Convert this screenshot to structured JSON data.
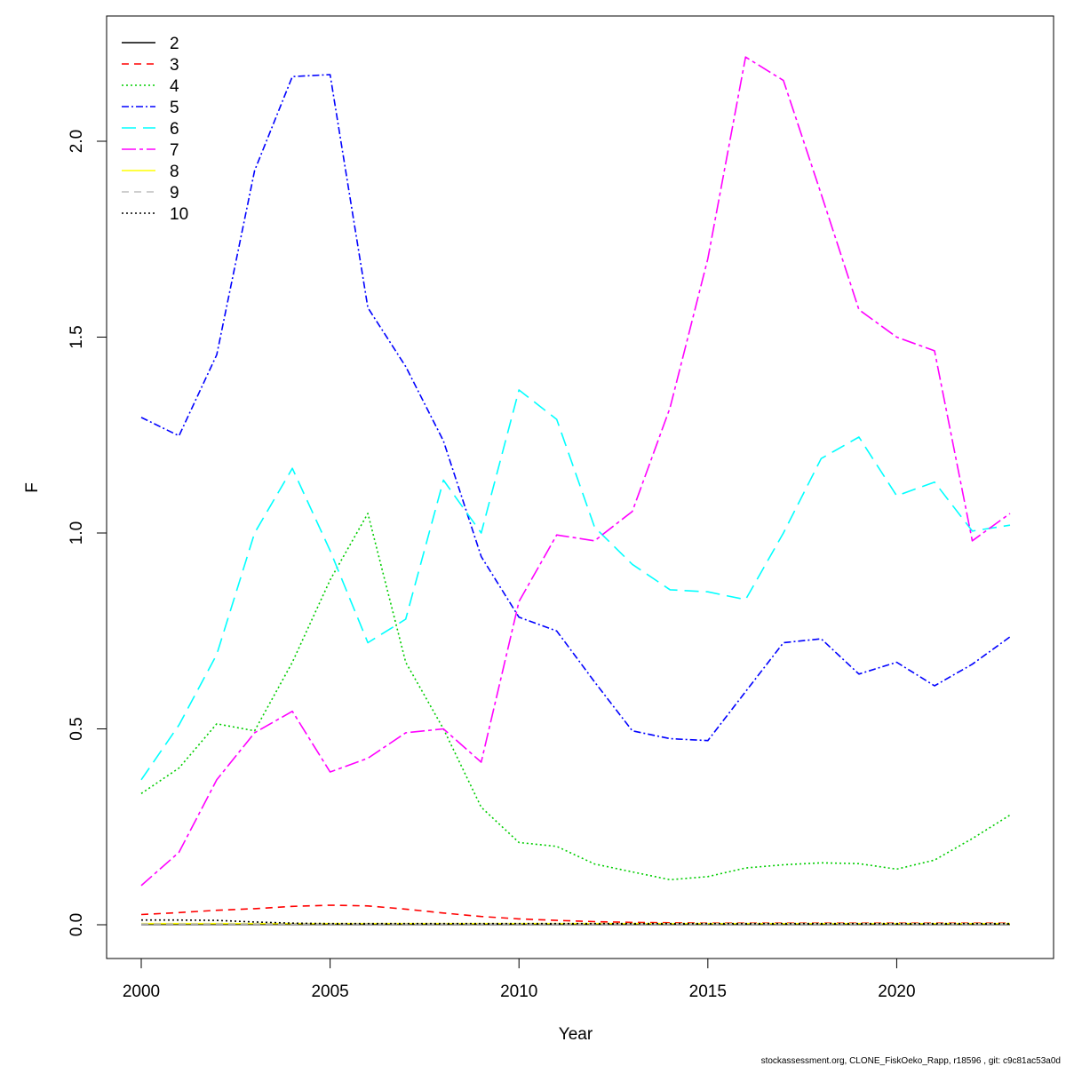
{
  "chart_data": {
    "type": "line",
    "title": "",
    "xlabel": "Year",
    "ylabel": "F",
    "xlim": [
      2000,
      2023
    ],
    "ylim": [
      0,
      2.2
    ],
    "xticks": [
      2000,
      2005,
      2010,
      2015,
      2020
    ],
    "yticks": [
      "0.0",
      "0.5",
      "1.0",
      "1.5",
      "2.0"
    ],
    "legend_position": "top-left",
    "grid": false,
    "x": [
      2000,
      2001,
      2002,
      2003,
      2004,
      2005,
      2006,
      2007,
      2008,
      2009,
      2010,
      2011,
      2012,
      2013,
      2014,
      2015,
      2016,
      2017,
      2018,
      2019,
      2020,
      2021,
      2022,
      2023
    ],
    "series": [
      {
        "name": "2",
        "color": "#000000",
        "dash": "",
        "values": [
          0.001,
          0.001,
          0.001,
          0.001,
          0.001,
          0.001,
          0.001,
          0.001,
          0.001,
          0.001,
          0.001,
          0.001,
          0.001,
          0.001,
          0.001,
          0.001,
          0.001,
          0.001,
          0.001,
          0.001,
          0.001,
          0.001,
          0.001,
          0.001
        ]
      },
      {
        "name": "3",
        "color": "#ff0000",
        "dash": "8,6",
        "values": [
          0.026,
          0.031,
          0.037,
          0.041,
          0.047,
          0.05,
          0.048,
          0.04,
          0.03,
          0.021,
          0.015,
          0.011,
          0.008,
          0.006,
          0.005,
          0.004,
          0.004,
          0.004,
          0.004,
          0.004,
          0.004,
          0.004,
          0.004,
          0.004
        ]
      },
      {
        "name": "4",
        "color": "#00cd00",
        "dash": "2,3",
        "values": [
          0.335,
          0.4,
          0.513,
          0.495,
          0.67,
          0.88,
          1.05,
          0.67,
          0.5,
          0.3,
          0.21,
          0.2,
          0.155,
          0.135,
          0.115,
          0.123,
          0.145,
          0.153,
          0.158,
          0.156,
          0.142,
          0.165,
          0.22,
          0.28
        ]
      },
      {
        "name": "5",
        "color": "#0000ff",
        "dash": "8,3,2,3",
        "values": [
          1.295,
          1.248,
          1.455,
          1.925,
          2.165,
          2.17,
          1.575,
          1.425,
          1.235,
          0.94,
          0.785,
          0.75,
          0.62,
          0.495,
          0.475,
          0.47,
          0.595,
          0.72,
          0.73,
          0.64,
          0.67,
          0.61,
          0.665,
          0.735
        ]
      },
      {
        "name": "6",
        "color": "#00ffff",
        "dash": "16,8",
        "values": [
          0.37,
          0.51,
          0.69,
          1.0,
          1.165,
          0.955,
          0.72,
          0.78,
          1.135,
          1.0,
          1.365,
          1.29,
          1.015,
          0.92,
          0.855,
          0.85,
          0.83,
          1.0,
          1.19,
          1.245,
          1.095,
          1.13,
          1.005,
          1.02
        ]
      },
      {
        "name": "7",
        "color": "#ff00ff",
        "dash": "16,4,4,4",
        "values": [
          0.1,
          0.185,
          0.37,
          0.49,
          0.545,
          0.39,
          0.425,
          0.49,
          0.5,
          0.415,
          0.825,
          0.995,
          0.98,
          1.055,
          1.32,
          1.7,
          2.215,
          2.155,
          1.865,
          1.57,
          1.5,
          1.465,
          0.98,
          1.05
        ]
      },
      {
        "name": "8",
        "color": "#ffff00",
        "dash": "",
        "values": [
          0.003,
          0.003,
          0.003,
          0.003,
          0.003,
          0.003,
          0.003,
          0.003,
          0.003,
          0.003,
          0.003,
          0.003,
          0.003,
          0.003,
          0.003,
          0.003,
          0.003,
          0.003,
          0.003,
          0.003,
          0.003,
          0.003,
          0.003,
          0.003
        ]
      },
      {
        "name": "9",
        "color": "#bebebe",
        "dash": "8,6",
        "values": [
          0.002,
          0.002,
          0.002,
          0.002,
          0.002,
          0.002,
          0.002,
          0.002,
          0.002,
          0.002,
          0.002,
          0.002,
          0.002,
          0.002,
          0.002,
          0.002,
          0.002,
          0.002,
          0.002,
          0.002,
          0.002,
          0.002,
          0.002,
          0.002
        ]
      },
      {
        "name": "10",
        "color": "#000000",
        "dash": "2,3",
        "values": [
          0.012,
          0.012,
          0.011,
          0.007,
          0.004,
          0.003,
          0.003,
          0.003,
          0.003,
          0.003,
          0.003,
          0.003,
          0.003,
          0.003,
          0.003,
          0.003,
          0.003,
          0.003,
          0.003,
          0.003,
          0.003,
          0.003,
          0.003,
          0.003
        ]
      }
    ]
  },
  "footer": "stockassessment.org, CLONE_FiskOeko_Rapp, r18596 , git: c9c81ac53a0d"
}
